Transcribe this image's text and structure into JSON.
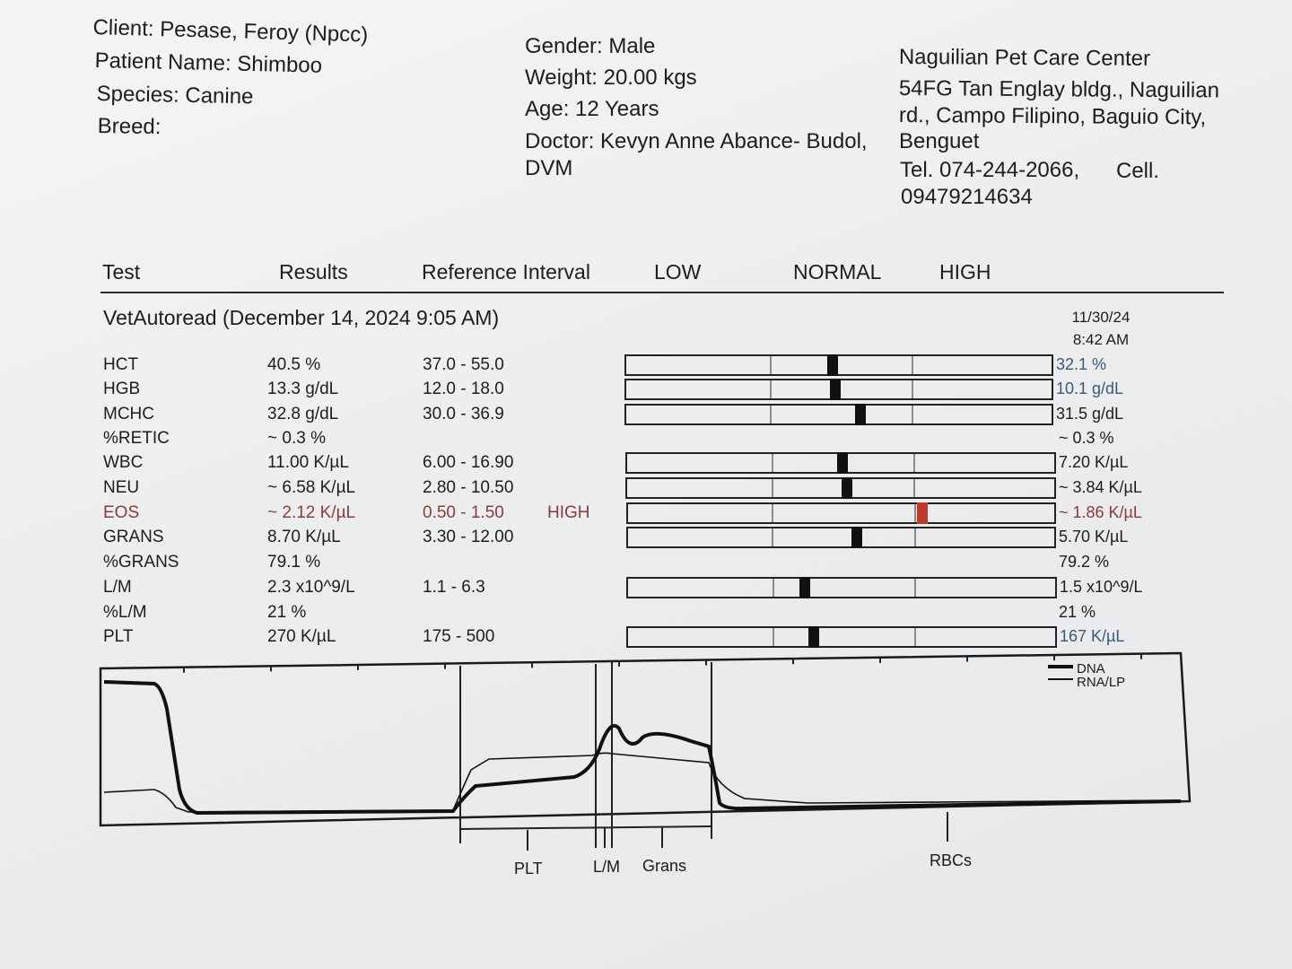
{
  "header": {
    "client": "Client: Pesase, Feroy (Npcc)",
    "patient": "Patient Name: Shimboo",
    "species": "Species: Canine",
    "breed": "Breed:",
    "gender": "Gender: Male",
    "weight": "Weight: 20.00 kgs",
    "age": "Age: 12 Years",
    "doctor_line1": "Doctor: Kevyn Anne Abance- Budol,",
    "doctor_line2": "DVM",
    "clinic_line1": "Naguilian Pet Care Center",
    "clinic_line2": "54FG Tan Englay bldg., Naguilian",
    "clinic_line3": "rd., Campo Filipino, Baguio City,",
    "clinic_line4": "Benguet",
    "clinic_tel": "Tel. 074-244-2066,",
    "clinic_cell_label": "Cell.",
    "clinic_cell": "09479214634"
  },
  "columns": {
    "test": "Test",
    "results": "Results",
    "reference": "Reference Interval",
    "low": "LOW",
    "normal": "NORMAL",
    "high": "HIGH"
  },
  "section": {
    "title": "VetAutoread (December 14, 2024 9:05 AM)",
    "prev_date": "11/30/24",
    "prev_time": "8:42 AM"
  },
  "rows": [
    {
      "test": "HCT",
      "result": "40.5 %",
      "ref": "37.0 - 55.0",
      "flag": "",
      "prev": "32.1 %",
      "marker_pos": 0.44
    },
    {
      "test": "HGB",
      "result": "13.3 g/dL",
      "ref": "12.0 - 18.0",
      "flag": "",
      "prev": "10.1 g/dL",
      "marker_pos": 0.46
    },
    {
      "test": "MCHC",
      "result": "32.8 g/dL",
      "ref": "30.0 - 36.9",
      "flag": "",
      "prev": "31.5 g/dL",
      "marker_pos": 0.64
    },
    {
      "test": "%RETIC",
      "result": "~ 0.3 %",
      "ref": "",
      "flag": "",
      "prev": "~ 0.3 %"
    },
    {
      "test": "WBC",
      "result": "11.00 K/µL",
      "ref": "6.00 - 16.90",
      "flag": "",
      "prev": "7.20 K/µL",
      "marker_pos": 0.5
    },
    {
      "test": "NEU",
      "result": "~ 6.58 K/µL",
      "ref": "2.80 - 10.50",
      "flag": "",
      "prev": "~ 3.84 K/µL",
      "marker_pos": 0.53
    },
    {
      "test": "EOS",
      "result": "~ 2.12 K/µL",
      "ref": "0.50 - 1.50",
      "flag": "HIGH",
      "prev": "~ 1.86 K/µL",
      "marker_pos": 1.06
    },
    {
      "test": "GRANS",
      "result": "8.70 K/µL",
      "ref": "3.30 - 12.00",
      "flag": "",
      "prev": "5.70 K/µL",
      "marker_pos": 0.6
    },
    {
      "test": "%GRANS",
      "result": "79.1 %",
      "ref": "",
      "flag": "",
      "prev": "79.2 %"
    },
    {
      "test": "L/M",
      "result": "2.3 x10^9/L",
      "ref": "1.1 - 6.3",
      "flag": "",
      "prev": "1.5 x10^9/L",
      "marker_pos": 0.23
    },
    {
      "test": "%L/M",
      "result": "21 %",
      "ref": "",
      "flag": "",
      "prev": "21 %"
    },
    {
      "test": "PLT",
      "result": "270 K/µL",
      "ref": "175 - 500",
      "flag": "",
      "prev": "167 K/µL",
      "marker_pos": 0.29
    }
  ],
  "histogram": {
    "legend": [
      "DNA",
      "RNA/LP"
    ],
    "axis_labels": [
      "PLT",
      "L/M",
      "Grans",
      "RBCs"
    ]
  },
  "colors": {
    "high_flag": "#9b3a3a",
    "high_marker": "#c0392b",
    "prev_blue": "#3a5a7a"
  }
}
